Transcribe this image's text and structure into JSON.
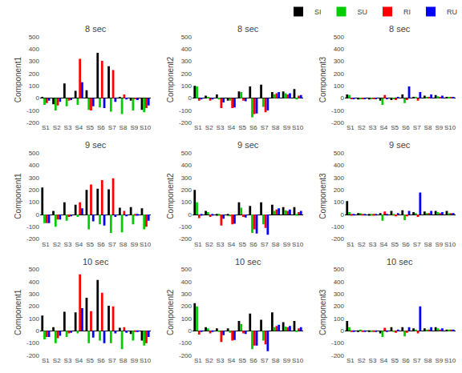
{
  "chart_data": [
    {
      "type": "bar",
      "title": "8 sec",
      "ylabel": "Component1",
      "categories": [
        "S1",
        "S2",
        "S3",
        "S4",
        "S5",
        "S6",
        "S7",
        "S8",
        "S9",
        "S10"
      ],
      "series": [
        {
          "name": "SI",
          "color": "black",
          "values": [
            5,
            -50,
            120,
            60,
            65,
            370,
            260,
            10,
            -20,
            -95
          ]
        },
        {
          "name": "SU",
          "color": "#00cc00",
          "values": [
            -55,
            -100,
            -65,
            -55,
            -95,
            -75,
            -110,
            -130,
            -100,
            -115
          ]
        },
        {
          "name": "RI",
          "color": "red",
          "values": [
            -40,
            -60,
            -20,
            320,
            -100,
            305,
            230,
            30,
            -5,
            -80
          ]
        },
        {
          "name": "RU",
          "color": "blue",
          "values": [
            -20,
            -30,
            -15,
            130,
            -65,
            -80,
            -30,
            -10,
            -15,
            -60
          ]
        }
      ],
      "ylim": [
        -200,
        500
      ],
      "yticks": [
        -200,
        -100,
        0,
        100,
        200,
        300,
        400,
        500
      ],
      "grid": false,
      "legend": "upper right"
    },
    {
      "type": "bar",
      "title": "8 sec",
      "ylabel": "Component2",
      "categories": [
        "S1",
        "S2",
        "S3",
        "S4",
        "S5",
        "S6",
        "S7",
        "S8",
        "S9",
        "S10"
      ],
      "series": [
        {
          "name": "SI",
          "color": "black",
          "values": [
            100,
            20,
            30,
            -20,
            55,
            95,
            110,
            50,
            55,
            75
          ]
        },
        {
          "name": "SU",
          "color": "#00cc00",
          "values": [
            95,
            10,
            -10,
            -20,
            50,
            -155,
            -70,
            30,
            40,
            -10
          ]
        },
        {
          "name": "RI",
          "color": "red",
          "values": [
            -20,
            -20,
            -80,
            -80,
            -20,
            -130,
            -115,
            40,
            30,
            20
          ]
        },
        {
          "name": "RU",
          "color": "blue",
          "values": [
            -10,
            -10,
            -35,
            -75,
            -25,
            -125,
            -100,
            50,
            40,
            25
          ]
        }
      ],
      "ylim": [
        -200,
        500
      ],
      "yticks": [
        -200,
        -100,
        0,
        100,
        200,
        300,
        400,
        500
      ],
      "grid": false,
      "legend": "upper right"
    },
    {
      "type": "bar",
      "title": "8 sec",
      "ylabel": "Component3",
      "categories": [
        "S1",
        "S2",
        "S3",
        "S4",
        "S5",
        "S6",
        "S7",
        "S8",
        "S9",
        "S10"
      ],
      "series": [
        {
          "name": "SI",
          "color": "black",
          "values": [
            30,
            -10,
            -10,
            -20,
            -15,
            30,
            10,
            20,
            25,
            10
          ]
        },
        {
          "name": "SU",
          "color": "#00cc00",
          "values": [
            25,
            -5,
            -5,
            -55,
            -5,
            -40,
            5,
            5,
            15,
            5
          ]
        },
        {
          "name": "RI",
          "color": "red",
          "values": [
            -5,
            -5,
            -5,
            25,
            -15,
            -15,
            -20,
            5,
            5,
            5
          ]
        },
        {
          "name": "RU",
          "color": "blue",
          "values": [
            -5,
            -5,
            -5,
            -5,
            5,
            95,
            50,
            30,
            20,
            10
          ]
        }
      ],
      "ylim": [
        -200,
        500
      ],
      "yticks": [
        -200,
        -100,
        0,
        100,
        200,
        300,
        400,
        500
      ],
      "grid": false,
      "legend": "upper right"
    },
    {
      "type": "bar",
      "title": "9 sec",
      "ylabel": "Component1",
      "categories": [
        "S1",
        "S2",
        "S3",
        "S4",
        "S5",
        "S6",
        "S7",
        "S8",
        "S9",
        "S10"
      ],
      "series": [
        {
          "name": "SI",
          "color": "black",
          "values": [
            220,
            30,
            100,
            80,
            200,
            210,
            205,
            55,
            60,
            50
          ]
        },
        {
          "name": "SU",
          "color": "#00cc00",
          "values": [
            -70,
            -100,
            -50,
            -20,
            -120,
            -80,
            -150,
            -145,
            -80,
            -120
          ]
        },
        {
          "name": "RI",
          "color": "red",
          "values": [
            -70,
            -40,
            -20,
            100,
            245,
            280,
            295,
            30,
            -10,
            -100
          ]
        },
        {
          "name": "RU",
          "color": "blue",
          "values": [
            -70,
            -40,
            -15,
            50,
            -55,
            -90,
            -20,
            -15,
            -10,
            -50
          ]
        }
      ],
      "ylim": [
        -200,
        500
      ],
      "yticks": [
        -200,
        -100,
        0,
        100,
        200,
        300,
        400,
        500
      ],
      "grid": false,
      "legend": "upper right"
    },
    {
      "type": "bar",
      "title": "9 sec",
      "ylabel": "Component2",
      "categories": [
        "S1",
        "S2",
        "S3",
        "S4",
        "S5",
        "S6",
        "S7",
        "S8",
        "S9",
        "S10"
      ],
      "series": [
        {
          "name": "SI",
          "color": "black",
          "values": [
            200,
            30,
            -10,
            -10,
            100,
            70,
            100,
            80,
            60,
            60
          ]
        },
        {
          "name": "SU",
          "color": "#00cc00",
          "values": [
            100,
            20,
            -10,
            -15,
            55,
            -150,
            -80,
            30,
            35,
            -10
          ]
        },
        {
          "name": "RI",
          "color": "red",
          "values": [
            -30,
            -20,
            -90,
            -80,
            -20,
            -120,
            -110,
            40,
            30,
            20
          ]
        },
        {
          "name": "RU",
          "color": "blue",
          "values": [
            -10,
            -10,
            -35,
            -75,
            -25,
            -155,
            -165,
            50,
            40,
            30
          ]
        }
      ],
      "ylim": [
        -200,
        500
      ],
      "yticks": [
        -200,
        -100,
        0,
        100,
        200,
        300,
        400,
        500
      ],
      "grid": false,
      "legend": "upper right"
    },
    {
      "type": "bar",
      "title": "9 sec",
      "ylabel": "Component3",
      "categories": [
        "S1",
        "S2",
        "S3",
        "S4",
        "S5",
        "S6",
        "S7",
        "S8",
        "S9",
        "S10"
      ],
      "series": [
        {
          "name": "SI",
          "color": "black",
          "values": [
            110,
            10,
            -10,
            10,
            30,
            35,
            20,
            25,
            30,
            30
          ]
        },
        {
          "name": "SU",
          "color": "#00cc00",
          "values": [
            20,
            5,
            -10,
            -50,
            -10,
            -45,
            5,
            10,
            20,
            10
          ]
        },
        {
          "name": "RI",
          "color": "red",
          "values": [
            -10,
            -5,
            -10,
            25,
            -15,
            -15,
            -20,
            5,
            5,
            5
          ]
        },
        {
          "name": "RU",
          "color": "blue",
          "values": [
            -5,
            -5,
            -5,
            -5,
            5,
            30,
            180,
            30,
            20,
            10
          ]
        }
      ],
      "ylim": [
        -200,
        500
      ],
      "yticks": [
        -200,
        -100,
        0,
        100,
        200,
        300,
        400,
        500
      ],
      "grid": false,
      "legend": "upper right"
    },
    {
      "type": "bar",
      "title": "10 sec",
      "ylabel": "Component1",
      "categories": [
        "S1",
        "S2",
        "S3",
        "S4",
        "S5",
        "S6",
        "S7",
        "S8",
        "S9",
        "S10"
      ],
      "series": [
        {
          "name": "SI",
          "color": "black",
          "values": [
            125,
            30,
            155,
            150,
            270,
            415,
            205,
            25,
            -25,
            -80
          ]
        },
        {
          "name": "SU",
          "color": "#00cc00",
          "values": [
            -70,
            -100,
            -50,
            -20,
            -100,
            -80,
            -100,
            -150,
            -80,
            -120
          ]
        },
        {
          "name": "RI",
          "color": "red",
          "values": [
            -50,
            -60,
            -20,
            460,
            160,
            310,
            200,
            30,
            -10,
            -100
          ]
        },
        {
          "name": "RU",
          "color": "blue",
          "values": [
            -50,
            -40,
            -15,
            185,
            -55,
            -100,
            -20,
            -15,
            -10,
            -50
          ]
        }
      ],
      "ylim": [
        -200,
        500
      ],
      "yticks": [
        -200,
        -100,
        0,
        100,
        200,
        300,
        400,
        500
      ],
      "grid": false,
      "legend": "upper right"
    },
    {
      "type": "bar",
      "title": "10 sec",
      "ylabel": "Component2",
      "categories": [
        "S1",
        "S2",
        "S3",
        "S4",
        "S5",
        "S6",
        "S7",
        "S8",
        "S9",
        "S10"
      ],
      "series": [
        {
          "name": "SI",
          "color": "black",
          "values": [
            225,
            30,
            20,
            20,
            80,
            140,
            90,
            150,
            70,
            80
          ]
        },
        {
          "name": "SU",
          "color": "#00cc00",
          "values": [
            200,
            20,
            -10,
            -15,
            55,
            -150,
            -80,
            30,
            35,
            -10
          ]
        },
        {
          "name": "RI",
          "color": "red",
          "values": [
            -30,
            -20,
            -90,
            -80,
            -20,
            -120,
            -110,
            40,
            30,
            20
          ]
        },
        {
          "name": "RU",
          "color": "blue",
          "values": [
            -10,
            -10,
            -35,
            -75,
            -25,
            -120,
            -165,
            50,
            40,
            30
          ]
        }
      ],
      "ylim": [
        -200,
        500
      ],
      "yticks": [
        -200,
        -100,
        0,
        100,
        200,
        300,
        400,
        500
      ],
      "grid": false,
      "legend": "upper right"
    },
    {
      "type": "bar",
      "title": "10 sec",
      "ylabel": "Component3",
      "categories": [
        "S1",
        "S2",
        "S3",
        "S4",
        "S5",
        "S6",
        "S7",
        "S8",
        "S9",
        "S10"
      ],
      "series": [
        {
          "name": "SI",
          "color": "black",
          "values": [
            80,
            -10,
            -10,
            -20,
            30,
            30,
            20,
            20,
            30,
            10
          ]
        },
        {
          "name": "SU",
          "color": "#00cc00",
          "values": [
            30,
            10,
            -10,
            -50,
            -10,
            -45,
            5,
            10,
            20,
            10
          ]
        },
        {
          "name": "RI",
          "color": "red",
          "values": [
            -10,
            -5,
            -10,
            25,
            -15,
            -15,
            -20,
            5,
            5,
            5
          ]
        },
        {
          "name": "RU",
          "color": "blue",
          "values": [
            -5,
            -5,
            -5,
            -5,
            5,
            30,
            200,
            30,
            20,
            10
          ]
        }
      ],
      "ylim": [
        -200,
        500
      ],
      "yticks": [
        -200,
        -100,
        0,
        100,
        200,
        300,
        400,
        500
      ],
      "grid": false,
      "legend": "upper right"
    }
  ]
}
